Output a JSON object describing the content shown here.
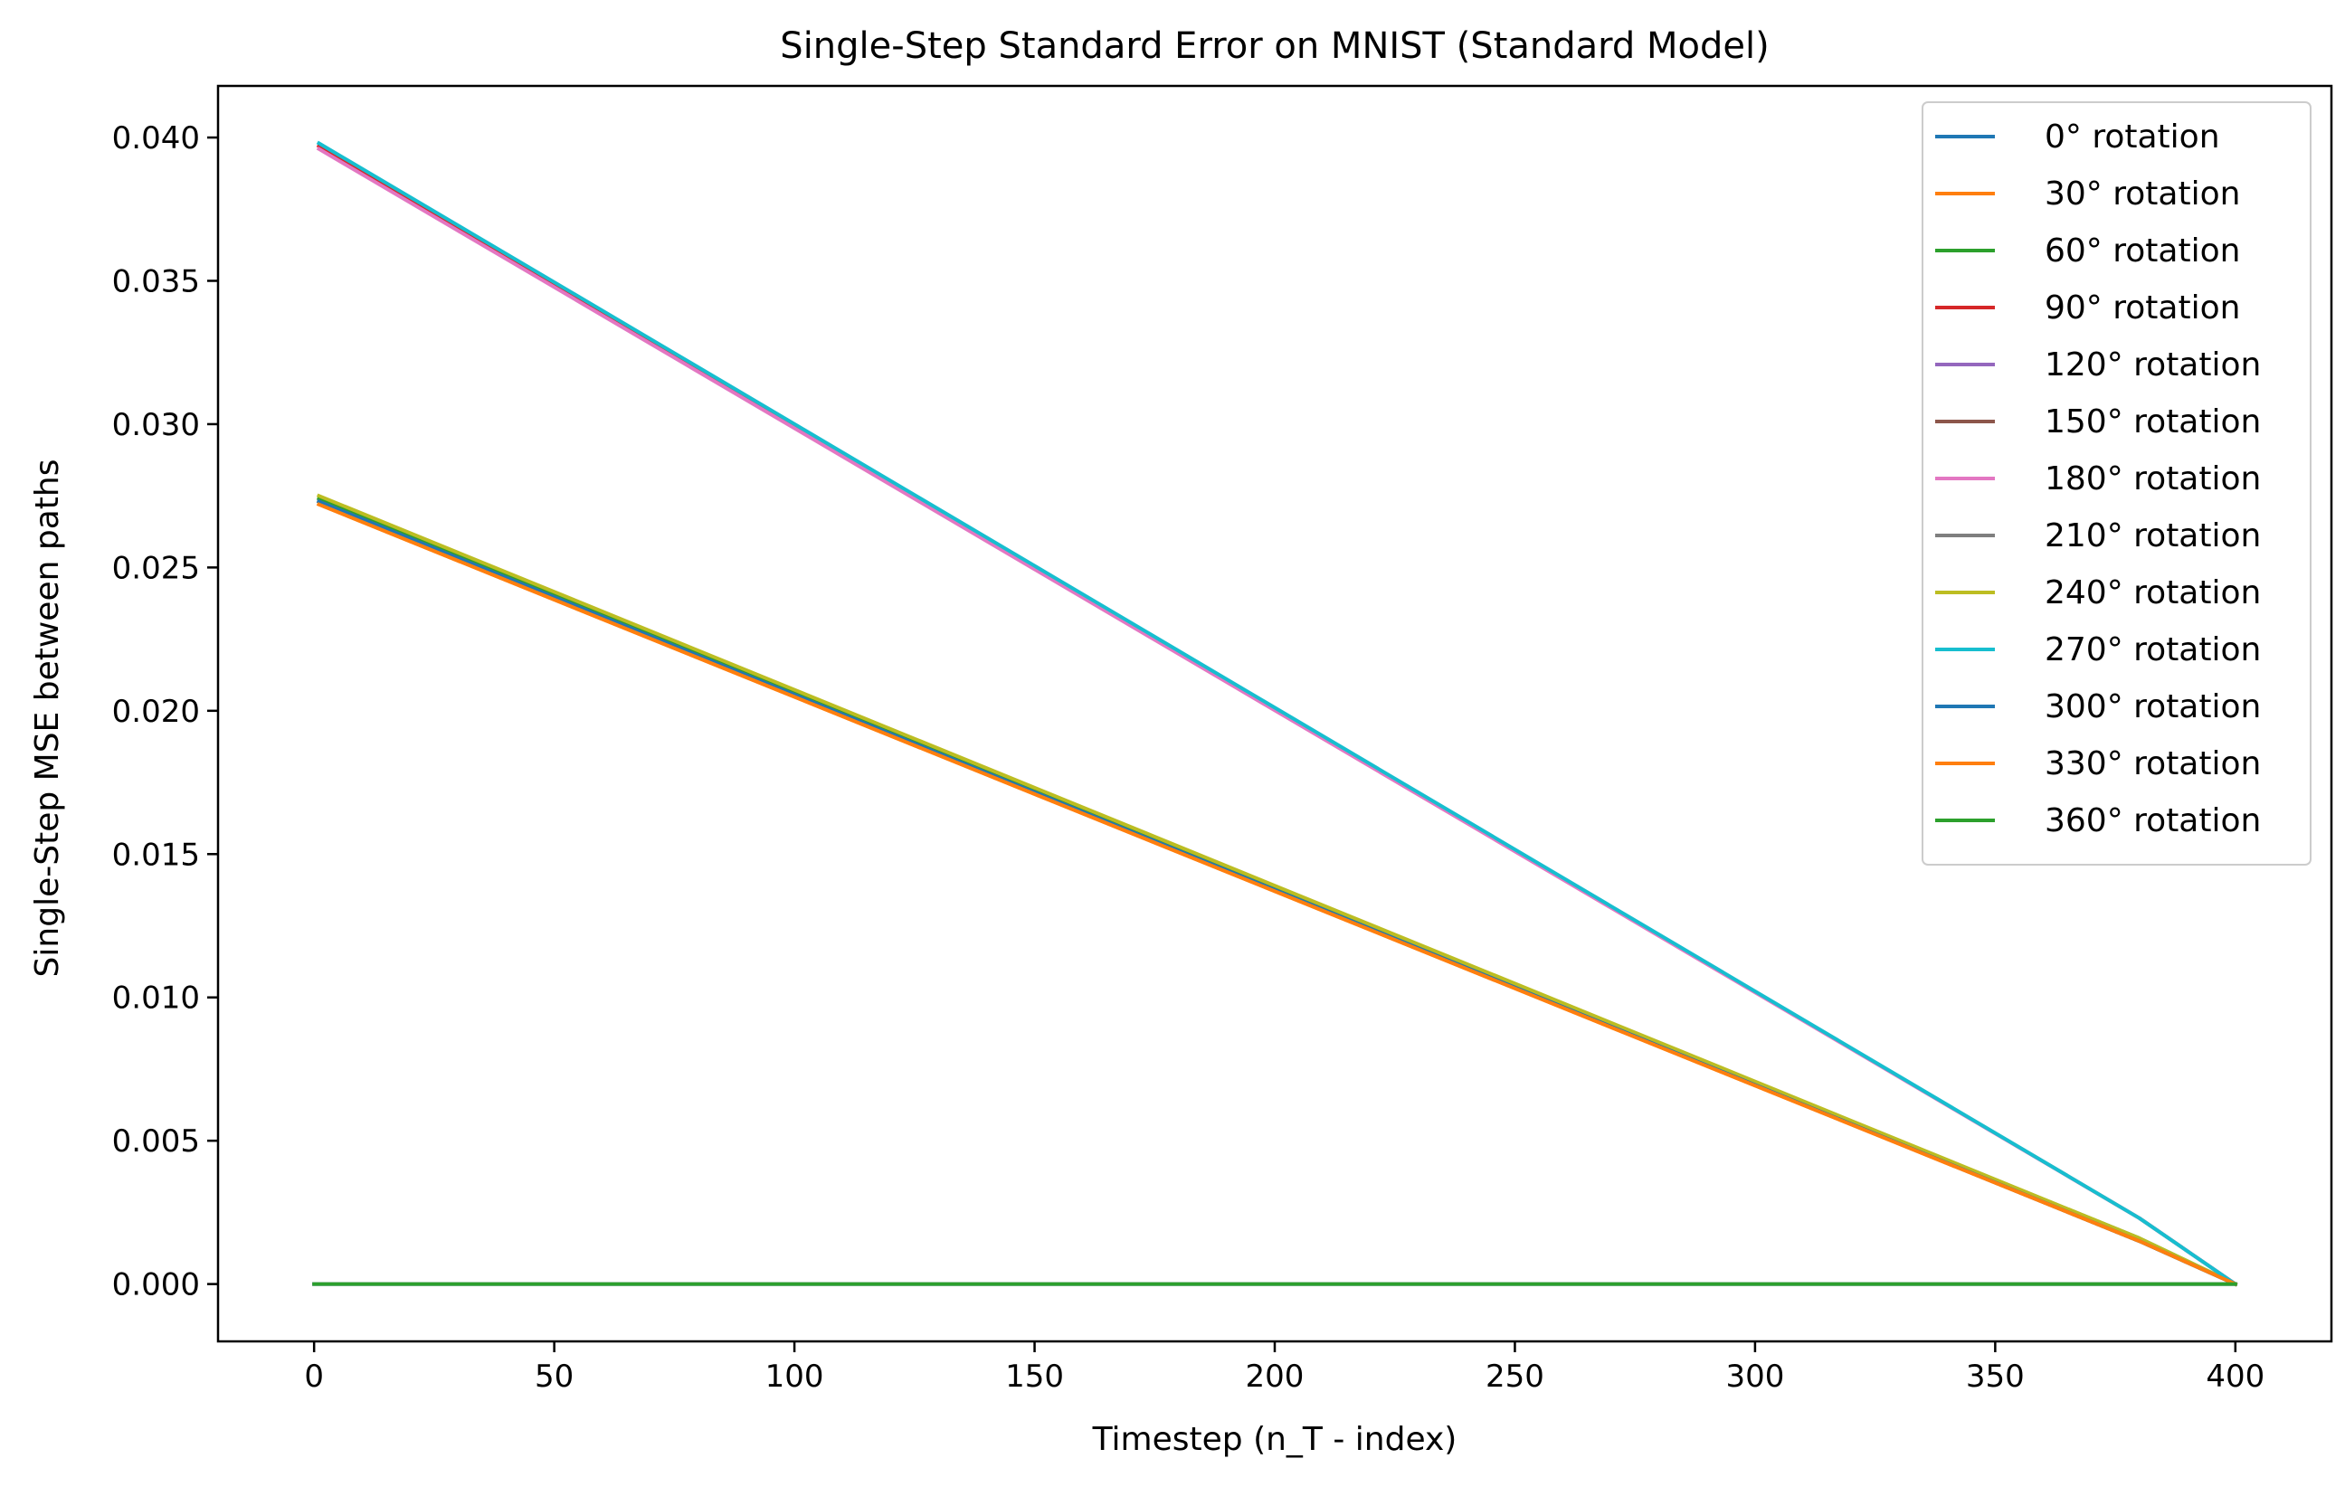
{
  "chart_data": {
    "type": "line",
    "title": "Single-Step Standard Error on MNIST (Standard Model)",
    "xlabel": "Timestep (n_T - index)",
    "ylabel": "Single-Step MSE between paths",
    "xlim": [
      -20,
      420
    ],
    "ylim": [
      -0.002,
      0.0418
    ],
    "xticks": [
      0,
      50,
      100,
      150,
      200,
      250,
      300,
      350,
      400
    ],
    "xtick_labels": [
      "0",
      "50",
      "100",
      "150",
      "200",
      "250",
      "300",
      "350",
      "400"
    ],
    "yticks": [
      0.0,
      0.005,
      0.01,
      0.015,
      0.02,
      0.025,
      0.03,
      0.035,
      0.04
    ],
    "ytick_labels": [
      "0.000",
      "0.005",
      "0.010",
      "0.015",
      "0.020",
      "0.025",
      "0.030",
      "0.035",
      "0.040"
    ],
    "grid": false,
    "legend_position": "top-right",
    "series": [
      {
        "name": "0° rotation",
        "color": "#1f77b4",
        "x": [
          0,
          400
        ],
        "y": [
          0.0,
          0.0
        ]
      },
      {
        "name": "30° rotation",
        "color": "#ff7f0e",
        "x": [
          1,
          380,
          400
        ],
        "y": [
          0.0272,
          0.0015,
          0.0
        ]
      },
      {
        "name": "60° rotation",
        "color": "#2ca02c",
        "x": [
          1,
          380,
          400
        ],
        "y": [
          0.0274,
          0.0016,
          0.0
        ]
      },
      {
        "name": "90° rotation",
        "color": "#d62728",
        "x": [
          1,
          380,
          400
        ],
        "y": [
          0.0397,
          0.0023,
          0.0
        ]
      },
      {
        "name": "120° rotation",
        "color": "#9467bd",
        "x": [
          0,
          400
        ],
        "y": [
          0.0,
          0.0
        ]
      },
      {
        "name": "150° rotation",
        "color": "#8c564b",
        "x": [
          1,
          380,
          400
        ],
        "y": [
          0.0273,
          0.0015,
          0.0
        ]
      },
      {
        "name": "180° rotation",
        "color": "#e377c2",
        "x": [
          1,
          380,
          400
        ],
        "y": [
          0.0396,
          0.0023,
          0.0
        ]
      },
      {
        "name": "210° rotation",
        "color": "#7f7f7f",
        "x": [
          1,
          380,
          400
        ],
        "y": [
          0.0273,
          0.0015,
          0.0
        ]
      },
      {
        "name": "240° rotation",
        "color": "#bcbd22",
        "x": [
          1,
          380,
          400
        ],
        "y": [
          0.0275,
          0.0016,
          0.0
        ]
      },
      {
        "name": "270° rotation",
        "color": "#17becf",
        "x": [
          1,
          380,
          400
        ],
        "y": [
          0.0398,
          0.0023,
          0.0
        ]
      },
      {
        "name": "300° rotation",
        "color": "#1f77b4",
        "x": [
          1,
          380,
          400
        ],
        "y": [
          0.0273,
          0.0015,
          0.0
        ]
      },
      {
        "name": "330° rotation",
        "color": "#ff7f0e",
        "x": [
          1,
          380,
          400
        ],
        "y": [
          0.0272,
          0.0015,
          0.0
        ]
      },
      {
        "name": "360° rotation",
        "color": "#2ca02c",
        "x": [
          0,
          400
        ],
        "y": [
          0.0,
          0.0
        ]
      }
    ]
  }
}
